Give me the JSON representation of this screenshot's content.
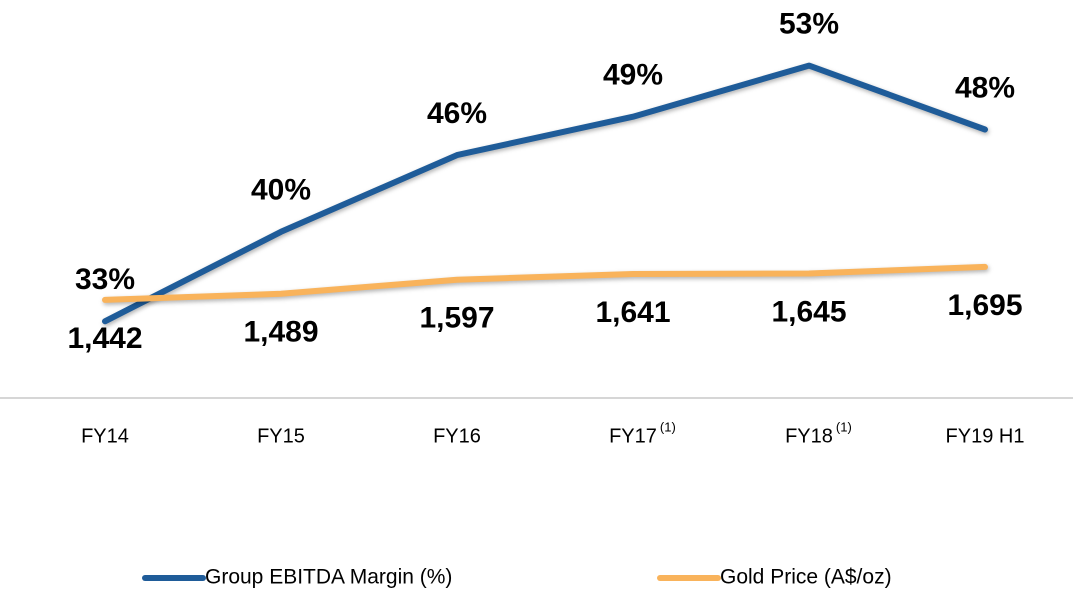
{
  "chart_data": {
    "type": "line",
    "categories": [
      "FY14",
      "FY15",
      "FY16",
      "FY17",
      "FY18",
      "FY19 H1"
    ],
    "category_notes": [
      null,
      null,
      null,
      "(1)",
      "(1)",
      null
    ],
    "series": [
      {
        "name": "Group EBITDA Margin (%)",
        "color": "#1f5c99",
        "values": [
          33,
          40,
          46,
          49,
          53,
          48
        ],
        "value_labels": [
          "33%",
          "40%",
          "46%",
          "49%",
          "53%",
          "48%"
        ]
      },
      {
        "name": "Gold Price (A$/oz)",
        "color": "#f9b35b",
        "axis": "y2",
        "values": [
          1442,
          1489,
          1597,
          1641,
          1645,
          1695
        ],
        "value_labels": [
          "1,442",
          "1,489",
          "1,597",
          "1,641",
          "1,645",
          "1,695"
        ]
      }
    ],
    "ylim": [
      27,
      55
    ],
    "y2lim": [
      690,
      3435
    ],
    "legend": "bottom"
  }
}
